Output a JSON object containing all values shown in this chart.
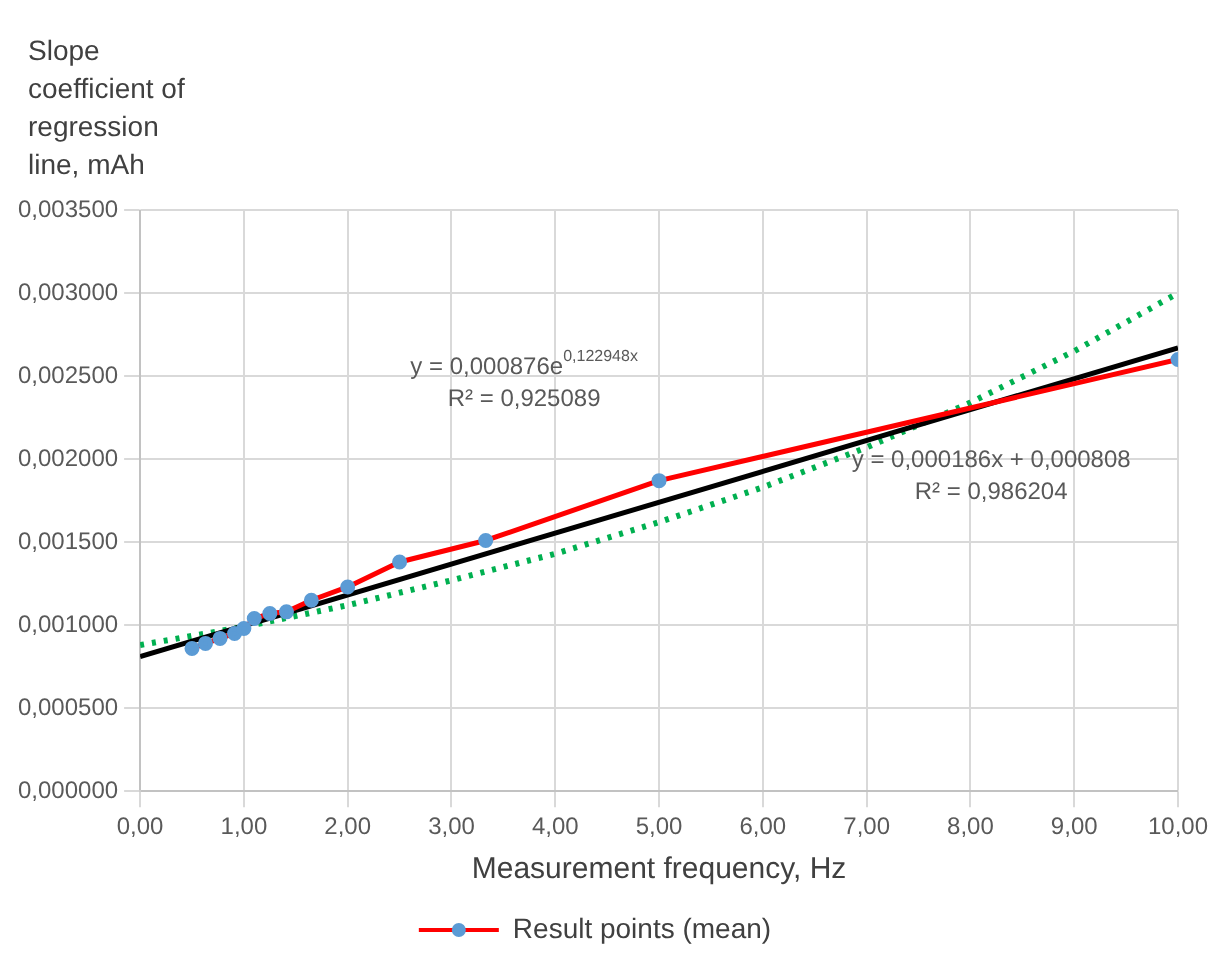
{
  "chart_data": {
    "type": "line",
    "xlabel": "Measurement frequency, Hz",
    "ylabel": "Slope coefficient of regression line, mAh",
    "xlim": [
      0,
      10
    ],
    "xticks": [
      {
        "value": 0,
        "label": "0,00"
      },
      {
        "value": 1,
        "label": "1,00"
      },
      {
        "value": 2,
        "label": "2,00"
      },
      {
        "value": 3,
        "label": "3,00"
      },
      {
        "value": 4,
        "label": "4,00"
      },
      {
        "value": 5,
        "label": "5,00"
      },
      {
        "value": 6,
        "label": "6,00"
      },
      {
        "value": 7,
        "label": "7,00"
      },
      {
        "value": 8,
        "label": "8,00"
      },
      {
        "value": 9,
        "label": "9,00"
      },
      {
        "value": 10,
        "label": "10,00"
      }
    ],
    "ylim": [
      0,
      0.0035
    ],
    "yticks": [
      {
        "value": 0,
        "label": "0,000000"
      },
      {
        "value": 0.0005,
        "label": "0,000500"
      },
      {
        "value": 0.001,
        "label": "0,001000"
      },
      {
        "value": 0.0015,
        "label": "0,001500"
      },
      {
        "value": 0.002,
        "label": "0,002000"
      },
      {
        "value": 0.0025,
        "label": "0,002500"
      },
      {
        "value": 0.003,
        "label": "0,003000"
      },
      {
        "value": 0.0035,
        "label": "0,003500"
      }
    ],
    "grid": true,
    "legend": "bottom",
    "marker": "circle",
    "series": [
      {
        "name": "Result points (mean)",
        "type": "line",
        "color": "#ff0000",
        "x": [
          0.5,
          0.63,
          0.77,
          0.91,
          1.0,
          1.1,
          1.25,
          1.41,
          1.65,
          2.0,
          2.5,
          3.33,
          5.0,
          10.0
        ],
        "values": [
          0.00086,
          0.00089,
          0.00092,
          0.00095,
          0.00098,
          0.00104,
          0.00107,
          0.00108,
          0.00115,
          0.00123,
          0.00138,
          0.00151,
          0.00187,
          0.0026
        ]
      },
      {
        "type": "line",
        "color": "#000000",
        "marker": "none",
        "line_style": "solid",
        "x": [
          0,
          10
        ],
        "values": [
          0.00081,
          0.00267
        ]
      },
      {
        "type": "line",
        "color": "#00b050",
        "marker": "none",
        "line_style": "dotted",
        "x": [
          0,
          1,
          2,
          3,
          4,
          5,
          6,
          7,
          8,
          9,
          10
        ],
        "values": [
          0.00088,
          0.00099,
          0.00112,
          0.00127,
          0.00143,
          0.00162,
          0.00183,
          0.00207,
          0.00234,
          0.00265,
          0.003
        ]
      }
    ],
    "annotations": [
      "y = 0,000876e$^{0,122948x}$\nR² = 0,925089",
      "y = 0,000186x + 0,000808\nR² = 0,986204"
    ]
  }
}
